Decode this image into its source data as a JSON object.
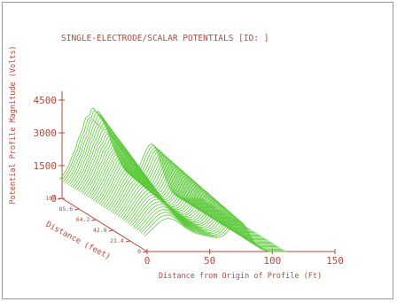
{
  "chart_data": {
    "type": "surface",
    "title": "SINGLE-ELECTRODE/SCALAR POTENTIALS [ID: ]",
    "zlabel": "Potential Profile Magnitude (Volts)",
    "ylabel": "Distance (feet)",
    "xlabel": "Distance from Origin of Profile (Ft)",
    "zlim": [
      0,
      4500
    ],
    "z_ticks": [
      "0",
      "1500",
      "3000",
      "4500"
    ],
    "x_ticks": [
      "0",
      "50",
      "100",
      "150"
    ],
    "y_ticks": [
      "107",
      "85.6",
      "64.2",
      "42.8",
      "21.4",
      "0"
    ],
    "xlim": [
      0,
      150
    ],
    "ylim": [
      0,
      107
    ],
    "profiles": 46,
    "peak_voltage": 4300,
    "mesh_color": "#5cc93a",
    "text_color": "#b04a3c"
  }
}
